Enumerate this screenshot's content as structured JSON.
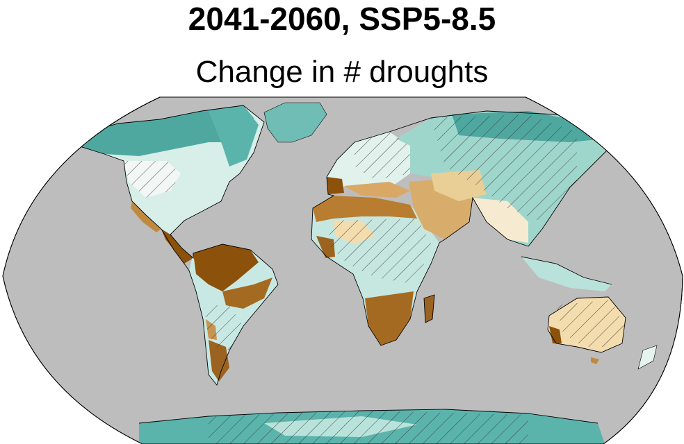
{
  "title": "2041-2060, SSP5-8.5",
  "subtitle": "Change in # droughts",
  "colors": {
    "ocean": "#bdbdbd",
    "strong_increase": "#8c510a",
    "increase": "#c08a3e",
    "slight_increase": "#f3dcae",
    "neutral": "#f2f7f5",
    "slight_decrease": "#b9e3da",
    "decrease": "#5ab4ac",
    "strong_decrease": "#2a8a80",
    "coastline": "#000000",
    "hatch": "#333333"
  },
  "legend": {
    "visible": false
  }
}
